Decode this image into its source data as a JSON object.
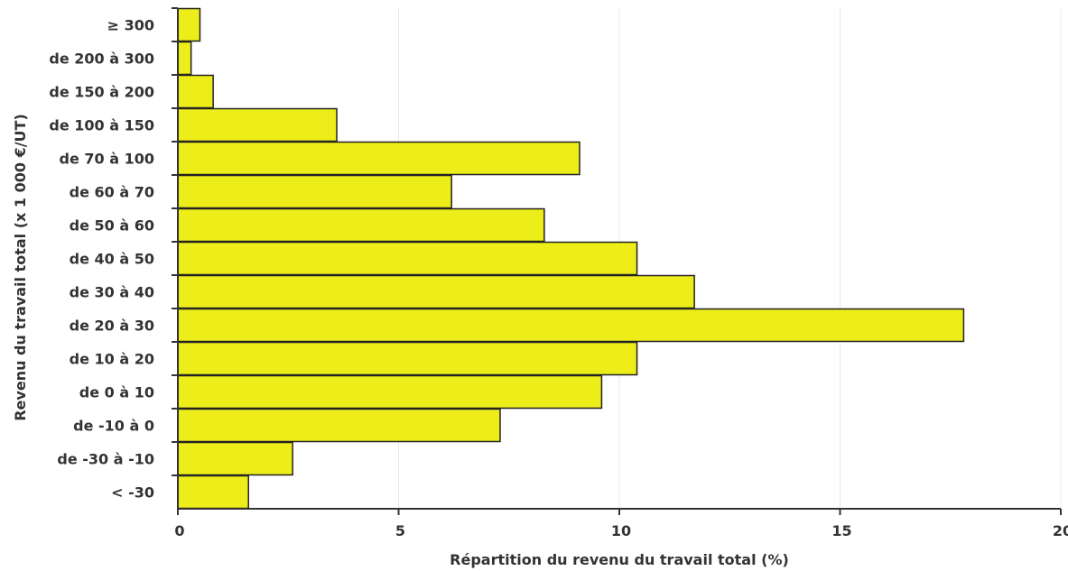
{
  "chart_data": {
    "type": "bar",
    "orientation": "horizontal",
    "categories": [
      "< -30",
      "de -30 à -10",
      "de -10 à 0",
      "de 0 à 10",
      "de 10 à 20",
      "de 20 à 30",
      "de 30 à 40",
      "de 40 à 50",
      "de 50 à 60",
      "de 60 à 70",
      "de 70 à 100",
      "de 100 à 150",
      "de 150 à 200",
      "de 200 à 300",
      "≥ 300"
    ],
    "values": [
      1.6,
      2.6,
      7.3,
      9.6,
      10.4,
      17.8,
      11.7,
      10.4,
      8.3,
      6.2,
      9.1,
      3.6,
      0.8,
      0.3,
      0.5
    ],
    "xlabel": "Répartition du revenu du travail total (%)",
    "ylabel": "Revenu du travail total (x 1 000 €/UT)",
    "xlim": [
      0,
      20
    ],
    "xticks": [
      "0",
      "5",
      "10",
      "15",
      "20"
    ],
    "grid": "vertical",
    "bar_color": "#eded1a",
    "bar_edge_color": "#222222"
  }
}
